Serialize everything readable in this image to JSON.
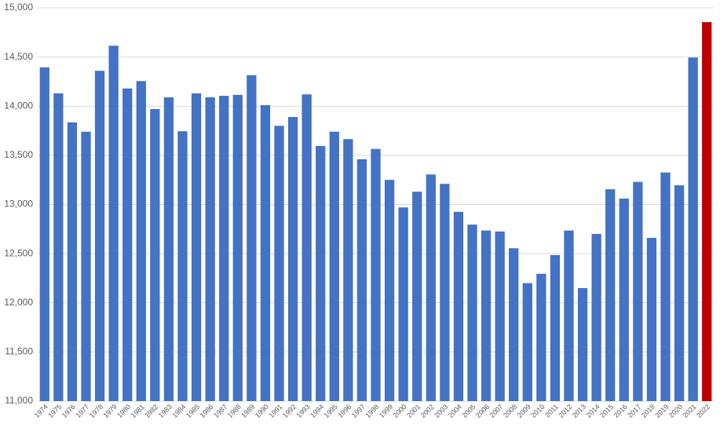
{
  "chart_data": {
    "type": "bar",
    "categories": [
      "1974",
      "1975",
      "1976",
      "1977",
      "1978",
      "1979",
      "1980",
      "1981",
      "1982",
      "1983",
      "1984",
      "1985",
      "1986",
      "1987",
      "1988",
      "1989",
      "1990",
      "1991",
      "1992",
      "1993",
      "1994",
      "1995",
      "1996",
      "1997",
      "1998",
      "1999",
      "2000",
      "2001",
      "2002",
      "2003",
      "2004",
      "2005",
      "2006",
      "2007",
      "2008",
      "2009",
      "2010",
      "2011",
      "2012",
      "2013",
      "2014",
      "2015",
      "2016",
      "2017",
      "2018",
      "2019",
      "2020",
      "2021",
      "2022"
    ],
    "values": [
      14395,
      14130,
      13835,
      13740,
      14360,
      14615,
      14180,
      14255,
      13970,
      14090,
      13745,
      14130,
      14090,
      14105,
      14115,
      14315,
      14010,
      13800,
      13890,
      14120,
      13595,
      13740,
      13665,
      13460,
      13565,
      13250,
      12970,
      13130,
      13305,
      13210,
      12925,
      12795,
      12735,
      12725,
      12555,
      12200,
      12295,
      12485,
      12735,
      12150,
      12700,
      13155,
      13060,
      13230,
      12660,
      13325,
      13195,
      14495,
      14855
    ],
    "colors": [
      "#4472c4",
      "#4472c4",
      "#4472c4",
      "#4472c4",
      "#4472c4",
      "#4472c4",
      "#4472c4",
      "#4472c4",
      "#4472c4",
      "#4472c4",
      "#4472c4",
      "#4472c4",
      "#4472c4",
      "#4472c4",
      "#4472c4",
      "#4472c4",
      "#4472c4",
      "#4472c4",
      "#4472c4",
      "#4472c4",
      "#4472c4",
      "#4472c4",
      "#4472c4",
      "#4472c4",
      "#4472c4",
      "#4472c4",
      "#4472c4",
      "#4472c4",
      "#4472c4",
      "#4472c4",
      "#4472c4",
      "#4472c4",
      "#4472c4",
      "#4472c4",
      "#4472c4",
      "#4472c4",
      "#4472c4",
      "#4472c4",
      "#4472c4",
      "#4472c4",
      "#4472c4",
      "#4472c4",
      "#4472c4",
      "#4472c4",
      "#4472c4",
      "#4472c4",
      "#4472c4",
      "#4472c4",
      "#c00000"
    ],
    "ylim": [
      11000,
      15000
    ],
    "yticks": [
      {
        "value": 11000,
        "label": "11,000"
      },
      {
        "value": 11500,
        "label": "11,500"
      },
      {
        "value": 12000,
        "label": "12,000"
      },
      {
        "value": 12500,
        "label": "12,500"
      },
      {
        "value": 13000,
        "label": "13,000"
      },
      {
        "value": 13500,
        "label": "13,500"
      },
      {
        "value": 14000,
        "label": "14,000"
      },
      {
        "value": 14500,
        "label": "14,500"
      },
      {
        "value": 15000,
        "label": "15,000"
      }
    ],
    "grid": true
  }
}
